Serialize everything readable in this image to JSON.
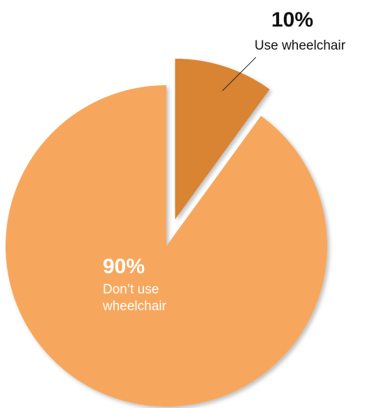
{
  "chart_data": {
    "type": "pie",
    "categories": [
      "Use wheelchair",
      "Don’t use wheelchair"
    ],
    "values": [
      10,
      90
    ],
    "value_labels": [
      "10%",
      "90%"
    ],
    "colors": [
      "#d98433",
      "#f7a75d"
    ],
    "explode": [
      true,
      false
    ]
  }
}
